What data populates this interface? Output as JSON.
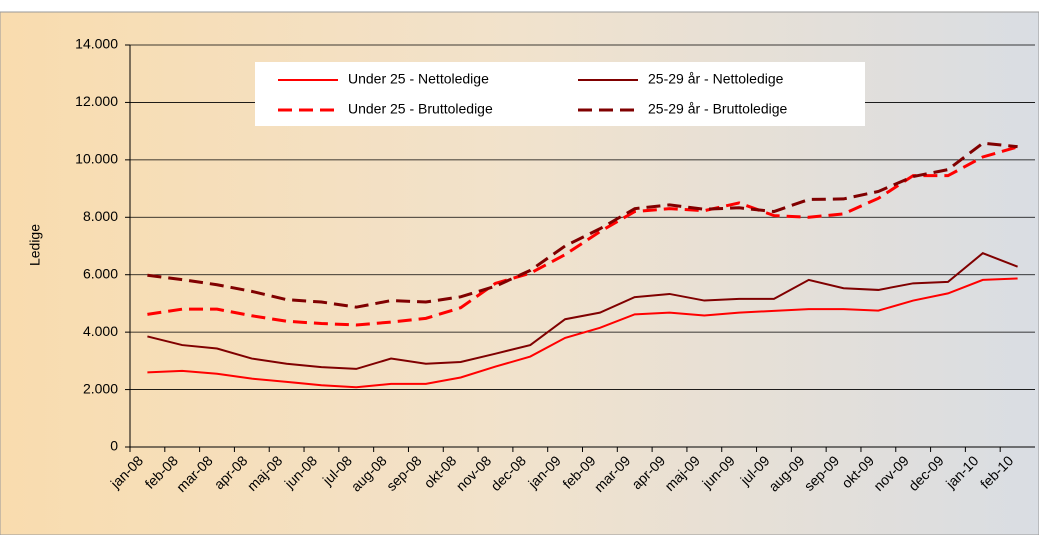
{
  "chart_data": {
    "type": "line",
    "y_label": "Ledige",
    "categories": [
      "jan-08",
      "feb-08",
      "mar-08",
      "apr-08",
      "maj-08",
      "jun-08",
      "jul-08",
      "aug-08",
      "sep-08",
      "okt-08",
      "nov-08",
      "dec-08",
      "jan-09",
      "feb-09",
      "mar-09",
      "apr-09",
      "maj-09",
      "jun-09",
      "jul-09",
      "aug-09",
      "sep-09",
      "okt-09",
      "nov-09",
      "dec-09",
      "jan-10",
      "feb-10"
    ],
    "series": [
      {
        "name": "Under 25 - Nettoledige",
        "color": "#ff0000",
        "dash": "solid",
        "values": [
          2600,
          2650,
          2550,
          2380,
          2270,
          2150,
          2080,
          2200,
          2200,
          2420,
          2800,
          3150,
          3800,
          4150,
          4620,
          4680,
          4580,
          4680,
          4740,
          4800,
          4800,
          4750,
          5100,
          5350,
          5820,
          5870
        ]
      },
      {
        "name": "25-29 år - Nettoledige",
        "color": "#800000",
        "dash": "solid",
        "values": [
          3850,
          3550,
          3430,
          3080,
          2900,
          2780,
          2720,
          3080,
          2900,
          2960,
          3250,
          3550,
          4450,
          4680,
          5220,
          5330,
          5100,
          5160,
          5160,
          5820,
          5530,
          5470,
          5700,
          5750,
          6750,
          6280
        ]
      },
      {
        "name": "Under 25 - Bruttoledige",
        "color": "#ff0000",
        "dash": "dashed",
        "values": [
          4620,
          4800,
          4800,
          4570,
          4380,
          4300,
          4250,
          4350,
          4480,
          4850,
          5700,
          6050,
          6700,
          7500,
          8200,
          8300,
          8230,
          8500,
          8060,
          8000,
          8120,
          8660,
          9450,
          9450,
          10100,
          10450
        ]
      },
      {
        "name": "25-29 år - Bruttoledige",
        "color": "#800000",
        "dash": "dashed",
        "values": [
          5980,
          5830,
          5650,
          5420,
          5130,
          5050,
          4870,
          5100,
          5050,
          5230,
          5600,
          6150,
          7000,
          7600,
          8300,
          8430,
          8280,
          8330,
          8200,
          8620,
          8640,
          8900,
          9420,
          9660,
          10580,
          10460
        ]
      }
    ],
    "ylim": [
      0,
      14000
    ],
    "yticks": [
      0,
      {
        "value": 2000,
        "label": "2.000"
      },
      {
        "value": 4000,
        "label": "4.000"
      },
      {
        "value": 6000,
        "label": "6.000"
      },
      {
        "value": 8000,
        "label": "8.000"
      },
      {
        "value": 10000,
        "label": "10.000"
      },
      {
        "value": 12000,
        "label": "12.000"
      },
      {
        "value": 14000,
        "label": "14.000"
      }
    ],
    "grid": true,
    "legend": "top"
  }
}
